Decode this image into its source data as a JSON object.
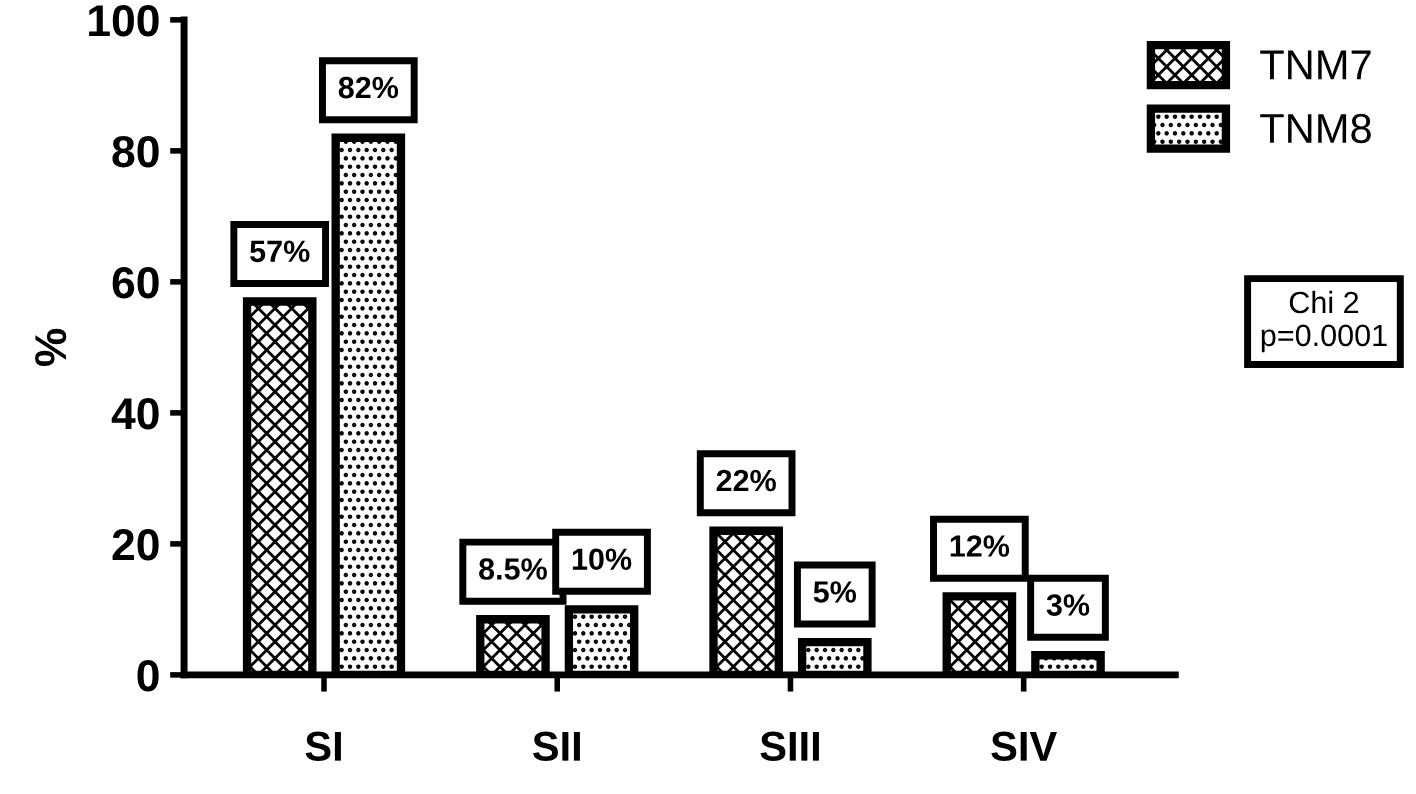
{
  "chart_data": {
    "type": "bar",
    "ylabel": "%",
    "categories": [
      "SI",
      "SII",
      "SIII",
      "SIV"
    ],
    "series": [
      {
        "name": "TNM7",
        "color": "#000000",
        "values": [
          57,
          8.5,
          22,
          12
        ],
        "value_labels": [
          "57%",
          "8.5%",
          "22%",
          "12%"
        ]
      },
      {
        "name": "TNM8",
        "color": "#000000",
        "values": [
          82,
          10,
          5,
          3
        ],
        "value_labels": [
          "82%",
          "10%",
          "5%",
          "3%"
        ]
      }
    ],
    "ylim": [
      0,
      100
    ],
    "yticks": [
      0,
      20,
      40,
      60,
      80,
      100
    ],
    "grid": false,
    "legend": "top right",
    "annotations": [
      "Chi 2\np=0.0001"
    ]
  }
}
